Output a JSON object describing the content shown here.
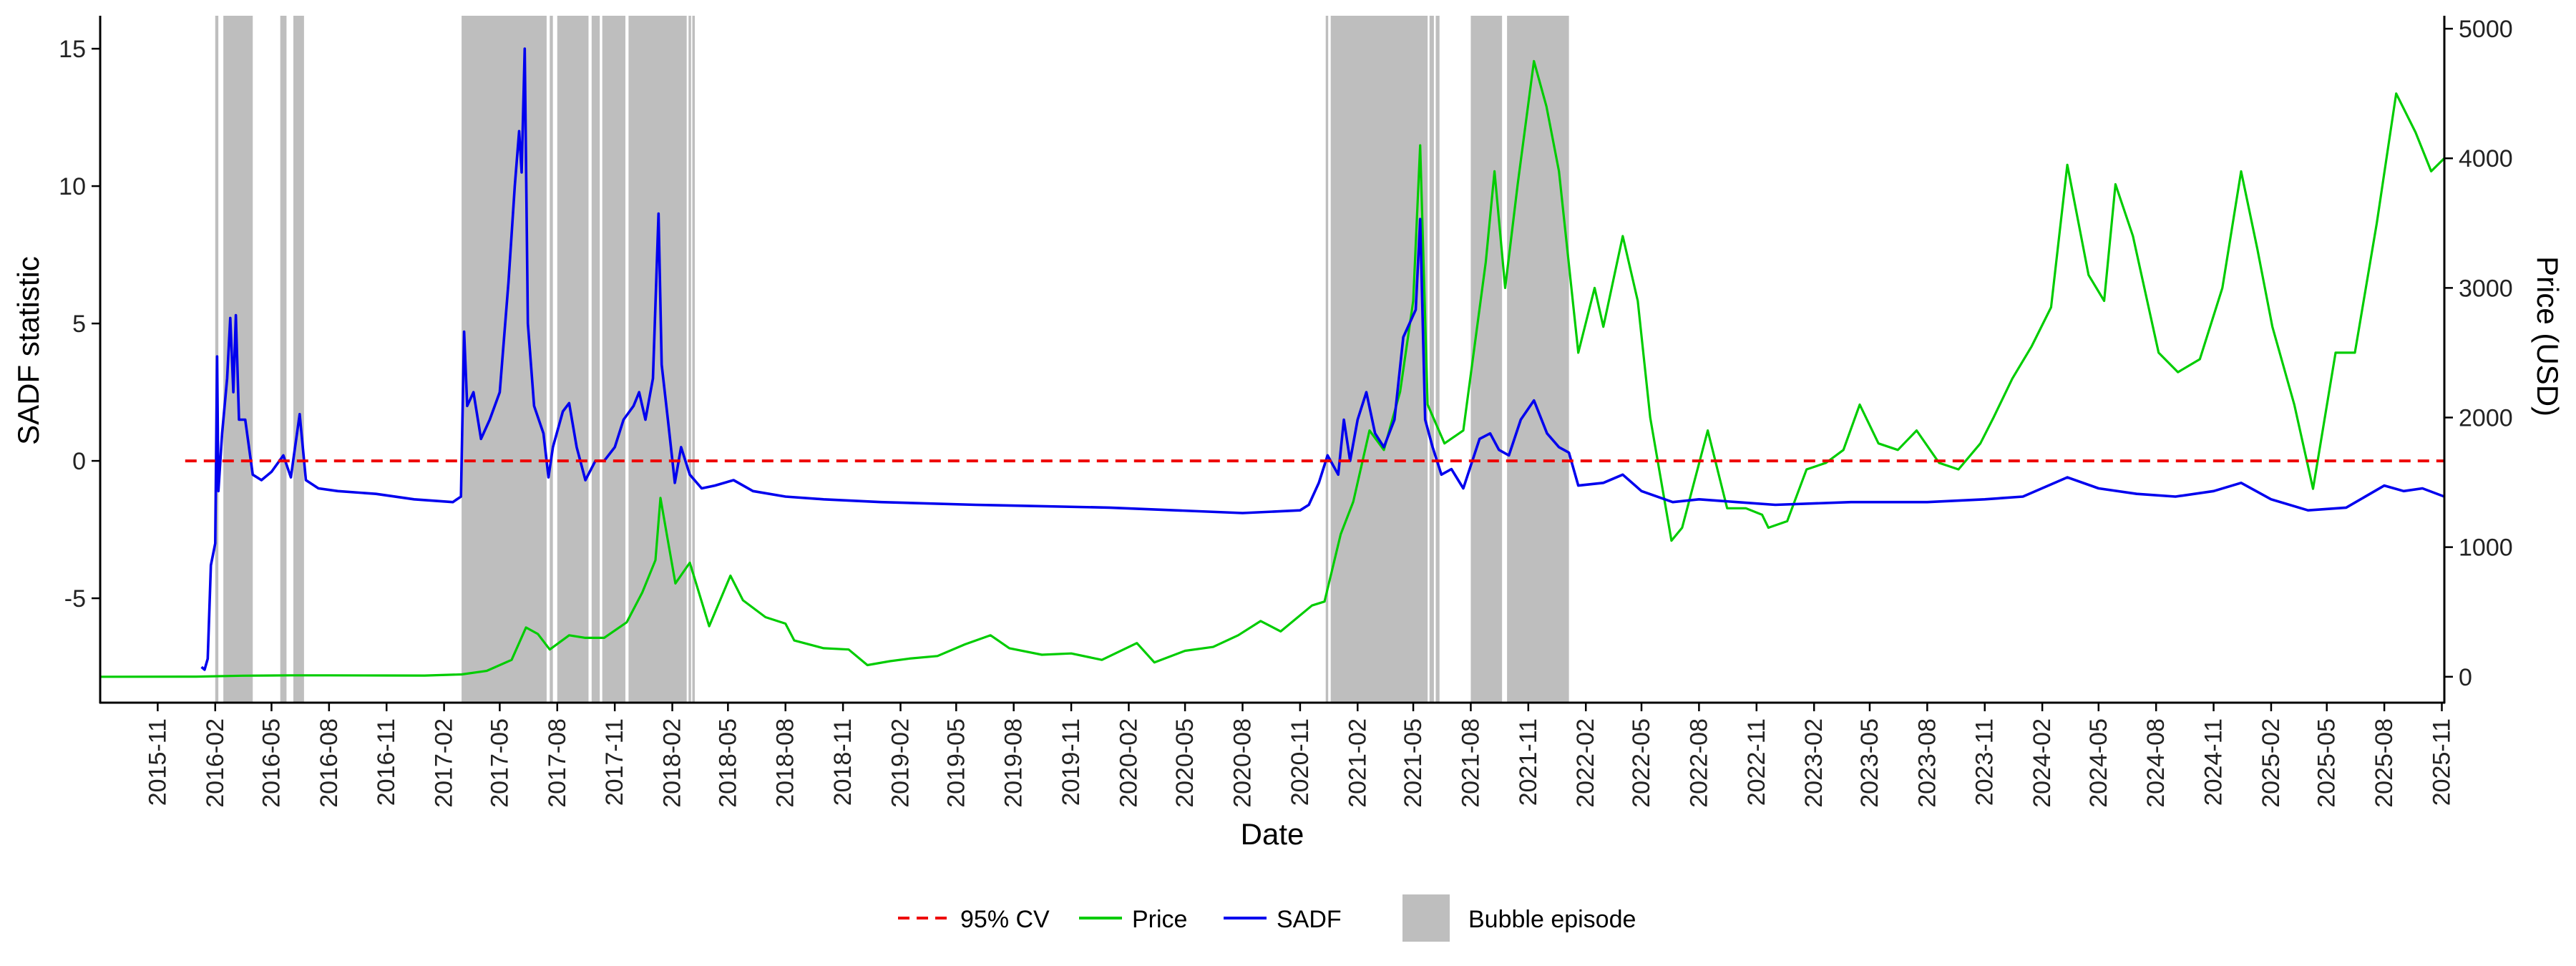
{
  "chart_data": {
    "type": "line",
    "title": "",
    "xlabel": "Date",
    "ylabel": "SADF statistic",
    "y2label": "Price (USD)",
    "colors": {
      "sadf": "#0000ee",
      "price": "#00cc00",
      "cv": "#ee0000",
      "bubble": "#bebebe",
      "axis": "#000000"
    },
    "xlim": [
      "2015-08-01",
      "2025-11-05"
    ],
    "ylim": [
      -8.8,
      16.2
    ],
    "y2lim": [
      -200,
      5100
    ],
    "y_ticks": [
      -5,
      0,
      5,
      10,
      15
    ],
    "y2_ticks": [
      0,
      1000,
      2000,
      3000,
      4000,
      5000
    ],
    "x_ticks": [
      "2015-11",
      "2016-02",
      "2016-05",
      "2016-08",
      "2016-11",
      "2017-02",
      "2017-05",
      "2017-08",
      "2017-11",
      "2018-02",
      "2018-05",
      "2018-08",
      "2018-11",
      "2019-02",
      "2019-05",
      "2019-08",
      "2019-11",
      "2020-02",
      "2020-05",
      "2020-08",
      "2020-11",
      "2021-02",
      "2021-05",
      "2021-08",
      "2021-11",
      "2022-02",
      "2022-05",
      "2022-08",
      "2022-11",
      "2023-02",
      "2023-05",
      "2023-08",
      "2023-11",
      "2024-02",
      "2024-05",
      "2024-08",
      "2024-11",
      "2025-02",
      "2025-05",
      "2025-08",
      "2025-11"
    ],
    "critical_value": 0,
    "legend": {
      "position": "bottom",
      "entries": [
        {
          "label": "95% CV",
          "kind": "dashed-line",
          "color_key": "cv"
        },
        {
          "label": "Price",
          "kind": "line",
          "color_key": "price"
        },
        {
          "label": "SADF",
          "kind": "line",
          "color_key": "sadf"
        },
        {
          "label": "Bubble episode",
          "kind": "box",
          "color_key": "bubble"
        }
      ]
    },
    "bubble_episodes": [
      [
        "2016-02-01",
        "2016-02-06"
      ],
      [
        "2016-02-14",
        "2016-04-01"
      ],
      [
        "2016-05-15",
        "2016-05-25"
      ],
      [
        "2016-06-05",
        "2016-06-22"
      ],
      [
        "2017-03-01",
        "2017-07-15"
      ],
      [
        "2017-07-20",
        "2017-07-25"
      ],
      [
        "2017-08-01",
        "2017-09-20"
      ],
      [
        "2017-09-25",
        "2017-10-08"
      ],
      [
        "2017-10-12",
        "2017-11-18"
      ],
      [
        "2017-11-23",
        "2018-02-24"
      ],
      [
        "2018-02-27",
        "2018-03-03"
      ],
      [
        "2018-03-05",
        "2018-03-09"
      ],
      [
        "2020-12-12",
        "2020-12-16"
      ],
      [
        "2020-12-20",
        "2021-05-24"
      ],
      [
        "2021-05-27",
        "2021-06-03"
      ],
      [
        "2021-06-06",
        "2021-06-12"
      ],
      [
        "2021-08-01",
        "2021-09-20"
      ],
      [
        "2021-09-28",
        "2022-01-05"
      ]
    ],
    "series": [
      {
        "name": "Price",
        "axis": "right",
        "points": [
          [
            "2015-08-01",
            0
          ],
          [
            "2016-01-01",
            1
          ],
          [
            "2016-03-15",
            8
          ],
          [
            "2016-06-01",
            11
          ],
          [
            "2016-08-01",
            11
          ],
          [
            "2016-11-01",
            10
          ],
          [
            "2017-01-01",
            9
          ],
          [
            "2017-03-01",
            18
          ],
          [
            "2017-04-10",
            45
          ],
          [
            "2017-05-20",
            130
          ],
          [
            "2017-06-12",
            380
          ],
          [
            "2017-07-01",
            330
          ],
          [
            "2017-07-20",
            210
          ],
          [
            "2017-08-20",
            320
          ],
          [
            "2017-09-15",
            300
          ],
          [
            "2017-10-15",
            300
          ],
          [
            "2017-11-20",
            420
          ],
          [
            "2017-12-15",
            650
          ],
          [
            "2018-01-05",
            900
          ],
          [
            "2018-01-13",
            1380
          ],
          [
            "2018-01-25",
            1050
          ],
          [
            "2018-02-06",
            720
          ],
          [
            "2018-03-01",
            880
          ],
          [
            "2018-04-01",
            390
          ],
          [
            "2018-05-05",
            780
          ],
          [
            "2018-05-25",
            590
          ],
          [
            "2018-06-30",
            460
          ],
          [
            "2018-08-01",
            410
          ],
          [
            "2018-08-15",
            280
          ],
          [
            "2018-10-01",
            220
          ],
          [
            "2018-11-10",
            210
          ],
          [
            "2018-12-10",
            90
          ],
          [
            "2019-01-15",
            120
          ],
          [
            "2019-02-15",
            140
          ],
          [
            "2019-04-01",
            160
          ],
          [
            "2019-05-15",
            250
          ],
          [
            "2019-06-25",
            320
          ],
          [
            "2019-07-25",
            220
          ],
          [
            "2019-09-15",
            170
          ],
          [
            "2019-11-01",
            180
          ],
          [
            "2019-12-20",
            130
          ],
          [
            "2020-02-14",
            260
          ],
          [
            "2020-03-13",
            110
          ],
          [
            "2020-05-01",
            200
          ],
          [
            "2020-06-15",
            230
          ],
          [
            "2020-07-25",
            320
          ],
          [
            "2020-08-30",
            430
          ],
          [
            "2020-10-01",
            350
          ],
          [
            "2020-11-20",
            550
          ],
          [
            "2020-12-10",
            580
          ],
          [
            "2021-01-05",
            1100
          ],
          [
            "2021-01-25",
            1350
          ],
          [
            "2021-02-20",
            1900
          ],
          [
            "2021-03-15",
            1750
          ],
          [
            "2021-04-10",
            2200
          ],
          [
            "2021-05-01",
            2900
          ],
          [
            "2021-05-12",
            4100
          ],
          [
            "2021-05-24",
            2100
          ],
          [
            "2021-06-20",
            1800
          ],
          [
            "2021-07-20",
            1900
          ],
          [
            "2021-08-25",
            3200
          ],
          [
            "2021-09-08",
            3900
          ],
          [
            "2021-09-25",
            3000
          ],
          [
            "2021-10-15",
            3800
          ],
          [
            "2021-11-10",
            4750
          ],
          [
            "2021-11-30",
            4400
          ],
          [
            "2021-12-20",
            3900
          ],
          [
            "2022-01-20",
            2500
          ],
          [
            "2022-02-15",
            3000
          ],
          [
            "2022-03-01",
            2700
          ],
          [
            "2022-04-01",
            3400
          ],
          [
            "2022-04-25",
            2900
          ],
          [
            "2022-05-15",
            2000
          ],
          [
            "2022-06-18",
            1050
          ],
          [
            "2022-07-05",
            1150
          ],
          [
            "2022-08-15",
            1900
          ],
          [
            "2022-09-15",
            1300
          ],
          [
            "2022-10-15",
            1300
          ],
          [
            "2022-11-10",
            1250
          ],
          [
            "2022-11-20",
            1150
          ],
          [
            "2022-12-20",
            1200
          ],
          [
            "2023-01-20",
            1600
          ],
          [
            "2023-02-20",
            1650
          ],
          [
            "2023-03-20",
            1750
          ],
          [
            "2023-04-15",
            2100
          ],
          [
            "2023-05-15",
            1800
          ],
          [
            "2023-06-15",
            1750
          ],
          [
            "2023-07-15",
            1900
          ],
          [
            "2023-08-20",
            1650
          ],
          [
            "2023-09-20",
            1600
          ],
          [
            "2023-10-25",
            1800
          ],
          [
            "2023-11-15",
            2000
          ],
          [
            "2023-12-15",
            2300
          ],
          [
            "2024-01-15",
            2550
          ],
          [
            "2024-02-15",
            2850
          ],
          [
            "2024-03-12",
            3950
          ],
          [
            "2024-04-15",
            3100
          ],
          [
            "2024-05-10",
            2900
          ],
          [
            "2024-05-28",
            3800
          ],
          [
            "2024-06-25",
            3400
          ],
          [
            "2024-08-05",
            2500
          ],
          [
            "2024-09-05",
            2350
          ],
          [
            "2024-10-10",
            2450
          ],
          [
            "2024-11-15",
            3000
          ],
          [
            "2024-12-15",
            3900
          ],
          [
            "2025-01-10",
            3300
          ],
          [
            "2025-02-03",
            2700
          ],
          [
            "2025-03-10",
            2100
          ],
          [
            "2025-04-09",
            1450
          ],
          [
            "2025-05-15",
            2500
          ],
          [
            "2025-06-15",
            2500
          ],
          [
            "2025-07-20",
            3500
          ],
          [
            "2025-08-20",
            4500
          ],
          [
            "2025-09-20",
            4200
          ],
          [
            "2025-10-15",
            3900
          ],
          [
            "2025-11-05",
            4000
          ]
        ]
      },
      {
        "name": "SADF",
        "axis": "left",
        "points": [
          [
            "2016-01-10",
            -7.5
          ],
          [
            "2016-01-15",
            -7.6
          ],
          [
            "2016-01-20",
            -7.2
          ],
          [
            "2016-01-25",
            -3.8
          ],
          [
            "2016-02-01",
            -3.0
          ],
          [
            "2016-02-04",
            3.8
          ],
          [
            "2016-02-06",
            -1.1
          ],
          [
            "2016-02-12",
            1.0
          ],
          [
            "2016-02-20",
            3.0
          ],
          [
            "2016-02-25",
            5.2
          ],
          [
            "2016-03-01",
            2.5
          ],
          [
            "2016-03-05",
            5.3
          ],
          [
            "2016-03-10",
            1.5
          ],
          [
            "2016-03-20",
            1.5
          ],
          [
            "2016-04-01",
            -0.5
          ],
          [
            "2016-04-15",
            -0.7
          ],
          [
            "2016-05-01",
            -0.4
          ],
          [
            "2016-05-20",
            0.2
          ],
          [
            "2016-06-01",
            -0.6
          ],
          [
            "2016-06-15",
            1.7
          ],
          [
            "2016-06-25",
            -0.7
          ],
          [
            "2016-07-15",
            -1.0
          ],
          [
            "2016-08-15",
            -1.1
          ],
          [
            "2016-10-15",
            -1.2
          ],
          [
            "2016-12-15",
            -1.4
          ],
          [
            "2017-02-15",
            -1.5
          ],
          [
            "2017-02-28",
            -1.3
          ],
          [
            "2017-03-05",
            4.7
          ],
          [
            "2017-03-10",
            2.0
          ],
          [
            "2017-03-20",
            2.5
          ],
          [
            "2017-04-01",
            0.8
          ],
          [
            "2017-04-15",
            1.5
          ],
          [
            "2017-05-01",
            2.5
          ],
          [
            "2017-05-15",
            6.5
          ],
          [
            "2017-05-25",
            10.0
          ],
          [
            "2017-06-01",
            12.0
          ],
          [
            "2017-06-05",
            10.5
          ],
          [
            "2017-06-10",
            15.0
          ],
          [
            "2017-06-15",
            5.0
          ],
          [
            "2017-06-25",
            2.0
          ],
          [
            "2017-07-10",
            1.0
          ],
          [
            "2017-07-18",
            -0.6
          ],
          [
            "2017-07-25",
            0.5
          ],
          [
            "2017-08-10",
            1.8
          ],
          [
            "2017-08-20",
            2.1
          ],
          [
            "2017-09-01",
            0.5
          ],
          [
            "2017-09-15",
            -0.7
          ],
          [
            "2017-10-01",
            0.0
          ],
          [
            "2017-10-15",
            0.0
          ],
          [
            "2017-11-01",
            0.5
          ],
          [
            "2017-11-15",
            1.5
          ],
          [
            "2017-12-01",
            2.0
          ],
          [
            "2017-12-10",
            2.5
          ],
          [
            "2017-12-20",
            1.5
          ],
          [
            "2018-01-01",
            3.0
          ],
          [
            "2018-01-10",
            9.0
          ],
          [
            "2018-01-15",
            3.5
          ],
          [
            "2018-01-25",
            1.5
          ],
          [
            "2018-02-05",
            -0.8
          ],
          [
            "2018-02-15",
            0.5
          ],
          [
            "2018-03-01",
            -0.5
          ],
          [
            "2018-03-20",
            -1.0
          ],
          [
            "2018-04-10",
            -0.9
          ],
          [
            "2018-05-10",
            -0.7
          ],
          [
            "2018-06-10",
            -1.1
          ],
          [
            "2018-08-01",
            -1.3
          ],
          [
            "2018-10-01",
            -1.4
          ],
          [
            "2019-01-01",
            -1.5
          ],
          [
            "2019-06-01",
            -1.6
          ],
          [
            "2020-01-01",
            -1.7
          ],
          [
            "2020-08-01",
            -1.9
          ],
          [
            "2020-11-01",
            -1.8
          ],
          [
            "2020-11-15",
            -1.6
          ],
          [
            "2020-12-01",
            -0.8
          ],
          [
            "2020-12-15",
            0.2
          ],
          [
            "2021-01-01",
            -0.5
          ],
          [
            "2021-01-10",
            1.5
          ],
          [
            "2021-01-20",
            0.0
          ],
          [
            "2021-02-01",
            1.5
          ],
          [
            "2021-02-15",
            2.5
          ],
          [
            "2021-03-01",
            1.0
          ],
          [
            "2021-03-15",
            0.5
          ],
          [
            "2021-04-01",
            1.5
          ],
          [
            "2021-04-15",
            4.5
          ],
          [
            "2021-05-05",
            5.5
          ],
          [
            "2021-05-12",
            8.8
          ],
          [
            "2021-05-20",
            1.5
          ],
          [
            "2021-06-01",
            0.5
          ],
          [
            "2021-06-15",
            -0.5
          ],
          [
            "2021-07-01",
            -0.3
          ],
          [
            "2021-07-20",
            -1.0
          ],
          [
            "2021-08-15",
            0.8
          ],
          [
            "2021-09-01",
            1.0
          ],
          [
            "2021-09-15",
            0.4
          ],
          [
            "2021-10-01",
            0.2
          ],
          [
            "2021-10-20",
            1.5
          ],
          [
            "2021-11-10",
            2.2
          ],
          [
            "2021-12-01",
            1.0
          ],
          [
            "2021-12-20",
            0.5
          ],
          [
            "2022-01-05",
            0.3
          ],
          [
            "2022-01-20",
            -0.9
          ],
          [
            "2022-03-01",
            -0.8
          ],
          [
            "2022-04-01",
            -0.5
          ],
          [
            "2022-05-01",
            -1.1
          ],
          [
            "2022-06-20",
            -1.5
          ],
          [
            "2022-08-01",
            -1.4
          ],
          [
            "2022-10-01",
            -1.5
          ],
          [
            "2022-12-01",
            -1.6
          ],
          [
            "2023-04-01",
            -1.5
          ],
          [
            "2023-08-01",
            -1.5
          ],
          [
            "2023-11-01",
            -1.4
          ],
          [
            "2024-01-01",
            -1.3
          ],
          [
            "2024-03-12",
            -0.6
          ],
          [
            "2024-05-01",
            -1.0
          ],
          [
            "2024-07-01",
            -1.2
          ],
          [
            "2024-09-01",
            -1.3
          ],
          [
            "2024-11-01",
            -1.1
          ],
          [
            "2024-12-15",
            -0.8
          ],
          [
            "2025-02-01",
            -1.4
          ],
          [
            "2025-04-01",
            -1.8
          ],
          [
            "2025-06-01",
            -1.7
          ],
          [
            "2025-08-01",
            -0.9
          ],
          [
            "2025-09-01",
            -1.1
          ],
          [
            "2025-10-01",
            -1.0
          ],
          [
            "2025-11-05",
            -1.3
          ]
        ]
      },
      {
        "name": "95% CV",
        "axis": "left",
        "points": [
          [
            "2015-12-15",
            0
          ],
          [
            "2025-11-05",
            0
          ]
        ]
      }
    ]
  }
}
